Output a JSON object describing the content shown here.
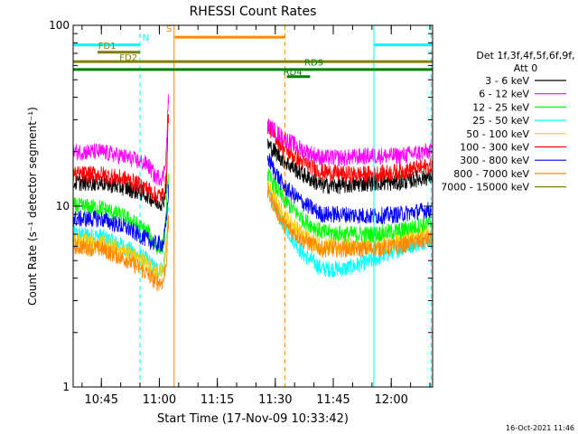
{
  "chart_data": {
    "type": "line",
    "title": "RHESSI Count Rates",
    "xlabel": "Start Time (17-Nov-09 10:33:42)",
    "ylabel": "Count Rate (s⁻¹ detector segment⁻¹)",
    "yscale": "log",
    "ylim": [
      1,
      100
    ],
    "xlim_minutes_after_10_30": [
      7.7,
      100.7
    ],
    "x_ticks": [
      "10:45",
      "11:00",
      "11:15",
      "11:30",
      "11:45",
      "12:00"
    ],
    "y_ticks": [
      "1",
      "10",
      "100"
    ],
    "legend_header": [
      "Det 1f,3f,4f,5f,6f,9f,",
      "Att 0"
    ],
    "legend_position": "right",
    "timestamp": "16-Oct-2021 11:46",
    "series": [
      {
        "name": "3 - 6 keV",
        "color": "#000000",
        "points": [
          [
            8,
            13.5
          ],
          [
            15,
            13.5
          ],
          [
            22,
            12.5
          ],
          [
            27,
            11.5
          ],
          [
            29,
            10.5
          ],
          [
            31,
            10.5
          ],
          [
            31.8,
            13
          ],
          [
            32.3,
            33
          ],
          [
            58,
            22
          ],
          [
            62,
            18
          ],
          [
            67,
            15
          ],
          [
            72,
            13
          ],
          [
            78,
            13
          ],
          [
            85,
            13.5
          ],
          [
            92,
            13.5
          ],
          [
            99,
            14.5
          ]
        ]
      },
      {
        "name": "6 - 12 keV",
        "color": "#ff00ff",
        "points": [
          [
            8,
            20
          ],
          [
            15,
            20
          ],
          [
            22,
            18.5
          ],
          [
            27,
            17
          ],
          [
            29,
            14.5
          ],
          [
            31,
            14.5
          ],
          [
            31.8,
            20
          ],
          [
            32.3,
            38
          ],
          [
            58,
            28
          ],
          [
            62,
            24
          ],
          [
            67,
            20.5
          ],
          [
            72,
            18.5
          ],
          [
            78,
            18.5
          ],
          [
            85,
            19
          ],
          [
            92,
            19
          ],
          [
            99,
            20
          ]
        ]
      },
      {
        "name": "12 - 25 keV",
        "color": "#00ff00",
        "points": [
          [
            8,
            10
          ],
          [
            15,
            9.8
          ],
          [
            22,
            8.5
          ],
          [
            27,
            7.2
          ],
          [
            29,
            6
          ],
          [
            31,
            6
          ],
          [
            31.8,
            9
          ],
          [
            32.3,
            15
          ],
          [
            58,
            15
          ],
          [
            62,
            11
          ],
          [
            67,
            8.5
          ],
          [
            72,
            7.2
          ],
          [
            78,
            7
          ],
          [
            85,
            7
          ],
          [
            92,
            7.3
          ],
          [
            99,
            8
          ]
        ]
      },
      {
        "name": "25 - 50 keV",
        "color": "#00ffff",
        "points": [
          [
            8,
            7
          ],
          [
            15,
            6.8
          ],
          [
            22,
            5.8
          ],
          [
            27,
            5
          ],
          [
            29,
            4.5
          ],
          [
            31,
            4.5
          ],
          [
            31.8,
            6.5
          ],
          [
            32.3,
            10
          ],
          [
            58,
            12.5
          ],
          [
            62,
            8
          ],
          [
            67,
            5.5
          ],
          [
            72,
            4.5
          ],
          [
            78,
            4.5
          ],
          [
            85,
            5
          ],
          [
            92,
            5.8
          ],
          [
            99,
            6.5
          ]
        ]
      },
      {
        "name": "50 - 100 keV",
        "color": "#ffcc00",
        "points": [
          [
            8,
            6.5
          ],
          [
            15,
            6.3
          ],
          [
            22,
            5.5
          ],
          [
            27,
            4.8
          ],
          [
            29,
            4.3
          ],
          [
            31,
            4.3
          ],
          [
            31.8,
            6
          ],
          [
            32.3,
            9
          ],
          [
            58,
            13
          ],
          [
            62,
            9
          ],
          [
            67,
            7
          ],
          [
            72,
            6
          ],
          [
            78,
            6
          ],
          [
            85,
            6
          ],
          [
            92,
            6.5
          ],
          [
            99,
            7
          ]
        ]
      },
      {
        "name": "100 - 300 keV",
        "color": "#ff0000",
        "points": [
          [
            8,
            15
          ],
          [
            15,
            15
          ],
          [
            22,
            14
          ],
          [
            27,
            12.5
          ],
          [
            29,
            11.5
          ],
          [
            31,
            11.5
          ],
          [
            31.8,
            14
          ],
          [
            32.3,
            30
          ],
          [
            58,
            28
          ],
          [
            62,
            21
          ],
          [
            67,
            17.5
          ],
          [
            72,
            15.5
          ],
          [
            78,
            15
          ],
          [
            85,
            15
          ],
          [
            92,
            15.5
          ],
          [
            99,
            16.5
          ]
        ]
      },
      {
        "name": "300 - 800 keV",
        "color": "#0000ff",
        "points": [
          [
            8,
            8.5
          ],
          [
            15,
            8.5
          ],
          [
            22,
            7.5
          ],
          [
            27,
            6.5
          ],
          [
            29,
            6.2
          ],
          [
            31,
            6.2
          ],
          [
            31.8,
            8
          ],
          [
            32.3,
            12
          ],
          [
            58,
            18.5
          ],
          [
            62,
            13
          ],
          [
            67,
            10.5
          ],
          [
            72,
            9
          ],
          [
            78,
            9
          ],
          [
            85,
            8.8
          ],
          [
            92,
            9
          ],
          [
            99,
            9.5
          ]
        ]
      },
      {
        "name": "800 - 7000 keV",
        "color": "#ff8800",
        "points": [
          [
            8,
            6
          ],
          [
            15,
            5.8
          ],
          [
            22,
            5
          ],
          [
            27,
            4.2
          ],
          [
            29,
            3.8
          ],
          [
            31,
            3.8
          ],
          [
            31.8,
            5
          ],
          [
            32.3,
            8
          ],
          [
            58,
            12
          ],
          [
            62,
            8
          ],
          [
            67,
            6.5
          ],
          [
            72,
            5.8
          ],
          [
            78,
            5.8
          ],
          [
            85,
            5.8
          ],
          [
            92,
            6
          ],
          [
            99,
            6.5
          ]
        ]
      },
      {
        "name": "7000 - 15000 keV",
        "color": "#808000",
        "points": []
      }
    ],
    "annotations": [
      {
        "label": "N",
        "color": "#00ffff"
      },
      {
        "label": "S",
        "color": "#ff8800"
      },
      {
        "label": "FD1",
        "color": "#808000"
      },
      {
        "label": "FD2",
        "color": "#808000"
      },
      {
        "label": "RD4",
        "color": "#008000"
      },
      {
        "label": "RD9",
        "color": "#008000"
      }
    ],
    "bars": [
      {
        "color": "#00ffff",
        "y": 78,
        "x": [
          7.7,
          25
        ]
      },
      {
        "color": "#00ffff",
        "y": 78,
        "x": [
          85.5,
          100.7
        ]
      },
      {
        "color": "#ff8800",
        "y": 86,
        "x": [
          34,
          62.5
        ]
      },
      {
        "color": "#808000",
        "y": 71,
        "x": [
          14,
          25
        ]
      },
      {
        "color": "#808000",
        "y": 63,
        "x": [
          7.7,
          100.7
        ]
      },
      {
        "color": "#008000",
        "y": 57,
        "x": [
          7.7,
          100.7
        ]
      },
      {
        "color": "#008000",
        "y": 52,
        "x": [
          63,
          69
        ]
      }
    ],
    "vlines": [
      {
        "x": 7.7,
        "color": "#00ffff",
        "dashed": false
      },
      {
        "x": 25,
        "color": "#00ffff",
        "dashed": true
      },
      {
        "x": 33.8,
        "color": "#ff8800",
        "dashed": false
      },
      {
        "x": 62.5,
        "color": "#ff8800",
        "dashed": true
      },
      {
        "x": 85.5,
        "color": "#00ffff",
        "dashed": false
      },
      {
        "x": 100.3,
        "color": "#00ffff",
        "dashed": true
      }
    ]
  }
}
